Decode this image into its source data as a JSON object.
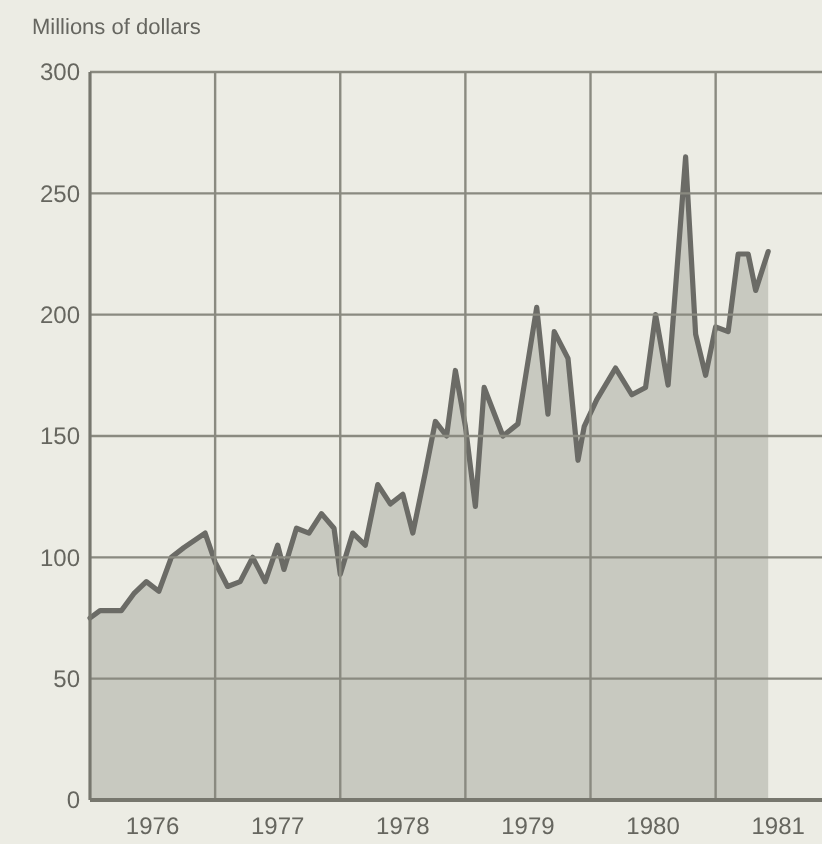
{
  "chart_data": {
    "type": "area",
    "ylabel": "Millions of dollars",
    "x": [
      1976.0,
      1976.08,
      1976.25,
      1976.35,
      1976.45,
      1976.55,
      1976.65,
      1976.75,
      1976.92,
      1977.0,
      1977.1,
      1977.2,
      1977.3,
      1977.4,
      1977.5,
      1977.55,
      1977.65,
      1977.75,
      1977.85,
      1977.95,
      1978.0,
      1978.1,
      1978.2,
      1978.3,
      1978.4,
      1978.5,
      1978.58,
      1978.68,
      1978.76,
      1978.85,
      1978.92,
      1979.0,
      1979.08,
      1979.15,
      1979.3,
      1979.42,
      1979.57,
      1979.66,
      1979.71,
      1979.82,
      1979.9,
      1979.95,
      1980.05,
      1980.2,
      1980.33,
      1980.44,
      1980.52,
      1980.62,
      1980.76,
      1980.84,
      1980.92,
      1981.0,
      1981.1,
      1981.18,
      1981.26,
      1981.32,
      1981.42
    ],
    "series": [
      {
        "color": "#6b6b66",
        "values": [
          75,
          78,
          78,
          85,
          90,
          86,
          100,
          104,
          110,
          98,
          88,
          90,
          100,
          90,
          105,
          95,
          112,
          110,
          118,
          112,
          93,
          110,
          105,
          130,
          122,
          126,
          110,
          135,
          156,
          150,
          177,
          154,
          121,
          170,
          150,
          155,
          203,
          159,
          193,
          182,
          140,
          154,
          165,
          178,
          167,
          170,
          200,
          171,
          265,
          192,
          175,
          195,
          193,
          225,
          225,
          210,
          226
        ]
      }
    ],
    "xlim": [
      1976,
      1981.85
    ],
    "xticks": [
      {
        "value": 1976,
        "label": null
      },
      {
        "value": 1976.5,
        "label": "1976"
      },
      {
        "value": 1977,
        "label": null
      },
      {
        "value": 1977.5,
        "label": "1977"
      },
      {
        "value": 1978,
        "label": null
      },
      {
        "value": 1978.5,
        "label": "1978"
      },
      {
        "value": 1979,
        "label": null
      },
      {
        "value": 1979.5,
        "label": "1979"
      },
      {
        "value": 1980,
        "label": null
      },
      {
        "value": 1980.5,
        "label": "1980"
      },
      {
        "value": 1981,
        "label": null
      },
      {
        "value": 1981.5,
        "label": "1981"
      }
    ],
    "ylim": [
      0,
      300
    ],
    "yticks": [
      0,
      50,
      100,
      150,
      200,
      250,
      300
    ],
    "grid": true
  }
}
